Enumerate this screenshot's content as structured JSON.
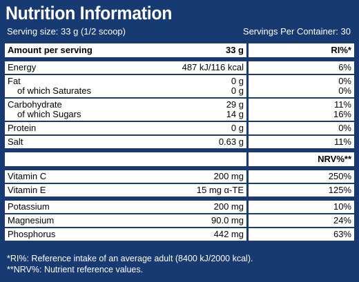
{
  "title": "Nutrition Information",
  "serving_size": "Serving size: 33 g (1/2 scoop)",
  "servings_per_container": "Servings Per Container: 30",
  "header": {
    "col1": "Amount per serving",
    "col2": "33 g",
    "col3": "RI%*"
  },
  "nutrients": [
    {
      "lines": [
        "Energy"
      ],
      "amounts": [
        "487 kJ/116 kcal"
      ],
      "ri": [
        "6%"
      ]
    },
    {
      "lines": [
        "Fat",
        "of which Saturates"
      ],
      "amounts": [
        "0 g",
        "0 g"
      ],
      "ri": [
        "0%",
        "0%"
      ]
    },
    {
      "lines": [
        "Carbohydrate",
        "of which Sugars"
      ],
      "amounts": [
        "29 g",
        "14 g"
      ],
      "ri": [
        "11%",
        "16%"
      ]
    },
    {
      "lines": [
        "Protein"
      ],
      "amounts": [
        "0 g"
      ],
      "ri": [
        "0%"
      ]
    },
    {
      "lines": [
        "Salt"
      ],
      "amounts": [
        "0.63 g"
      ],
      "ri": [
        "11%"
      ]
    }
  ],
  "nrv_header": "NRV%**",
  "vitamins": [
    {
      "name": "Vitamin C",
      "amount": "200 mg",
      "nrv": "250%"
    },
    {
      "name": "Vitamin E",
      "amount": "15 mg α-TE",
      "nrv": "125%"
    }
  ],
  "minerals": [
    {
      "name": "Potassium",
      "amount": "200 mg",
      "nrv": "10%"
    },
    {
      "name": "Magnesium",
      "amount": "90.0 mg",
      "nrv": "24%"
    },
    {
      "name": "Phosphorus",
      "amount": "442 mg",
      "nrv": "63%"
    }
  ],
  "footnotes": [
    "*RI%: Reference intake of an average adult (8400 kJ/2000 kcal).",
    "**NRV%: Nutrient reference values."
  ],
  "colors": {
    "background": "#173a72",
    "table": "#ffffff"
  }
}
